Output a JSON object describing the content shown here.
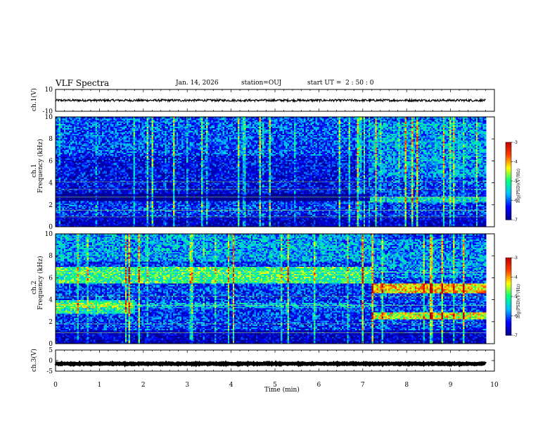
{
  "header": {
    "title": "VLF Spectra",
    "date": "Jan. 14, 2026",
    "station": "station=OUJ",
    "start": "start UT =  2 : 50 : 0"
  },
  "chart_data": [
    {
      "type": "line",
      "name": "ch1-voltage",
      "ylabel": "ch.1(V)",
      "ylim": [
        -10,
        10
      ],
      "yticks": [
        "10",
        "-10"
      ],
      "trace_level": 0,
      "trace_noise": 1.0,
      "xlim": [
        0,
        9.8
      ]
    },
    {
      "type": "heatmap",
      "name": "ch1-spectrogram",
      "ylabel": "ch.1\nFrequency (kHz)",
      "ylabel_line1": "ch.1",
      "ylabel_line2": "Frequency (kHz)",
      "ylim": [
        0,
        10
      ],
      "yticks": [
        "0",
        "2",
        "4",
        "6",
        "8",
        "10"
      ],
      "xlim": [
        0,
        9.8
      ],
      "colorbar_label": "log(PSD)(V²/Hz)",
      "colorbar_range": [
        -7,
        -3
      ],
      "colorbar_ticks": [
        "-3",
        "-4",
        "-5",
        "-6",
        "-7"
      ],
      "features": {
        "background_log_psd": -6.3,
        "dark_band_khz": [
          2.4,
          3.0
        ],
        "transition_min": 7.15,
        "after_transition_band_khz": [
          2.3,
          2.8
        ]
      }
    },
    {
      "type": "heatmap",
      "name": "ch2-spectrogram",
      "ylabel": "ch.2\nFrequency (kHz)",
      "ylabel_line1": "ch.2",
      "ylabel_line2": "Frequency (kHz)",
      "ylim": [
        0,
        10
      ],
      "yticks": [
        "0",
        "2",
        "4",
        "6",
        "8",
        "10"
      ],
      "xlim": [
        0,
        9.8
      ],
      "colorbar_label": "log(PSD)(V²/Hz)",
      "colorbar_range": [
        -7,
        -3
      ],
      "colorbar_ticks": [
        "-3",
        "-4",
        "-5",
        "-6",
        "-7"
      ],
      "features": {
        "enhanced_band_khz": [
          5.5,
          7.0
        ],
        "low_band_khz": [
          2.8,
          4.0
        ],
        "transition_min": 7.2,
        "after_band1_khz": [
          4.6,
          5.5
        ],
        "after_band2_khz": [
          2.3,
          2.9
        ]
      }
    },
    {
      "type": "line",
      "name": "ch3-voltage",
      "ylabel": "ch.3(V)",
      "ylim": [
        -5,
        5
      ],
      "yticks": [
        "5",
        "0",
        "-5"
      ],
      "trace_level": -1.5,
      "trace_noise": 0.2,
      "xlim": [
        0,
        9.8
      ]
    }
  ],
  "xaxis": {
    "label": "Time (min)",
    "ticks": [
      "0",
      "1",
      "2",
      "3",
      "4",
      "5",
      "6",
      "7",
      "8",
      "9",
      "10"
    ],
    "range": [
      0,
      10
    ]
  },
  "colors": {
    "colormap": [
      "#00008b",
      "#0000ff",
      "#00bfff",
      "#00ff80",
      "#ffff00",
      "#ff4000",
      "#c00000"
    ]
  }
}
